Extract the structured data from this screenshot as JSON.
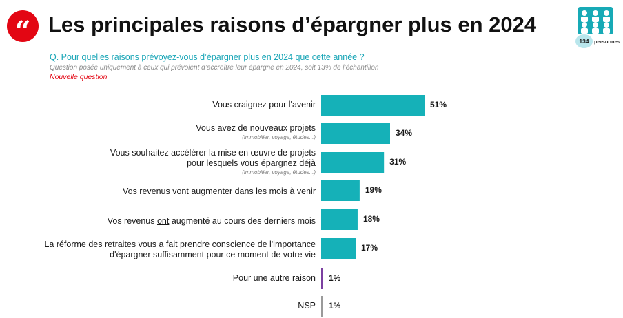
{
  "header": {
    "quote_glyph": "“",
    "title": "Les principales raisons d’épargner plus en 2024",
    "question": "Q. Pour quelles raisons prévoyez-vous d’épargner plus en 2024 que cette année ?",
    "note": "Question posée uniquement à ceux qui prévoient d’accroître leur épargne en 2024, soit 13% de l’échantillon",
    "new_question": "Nouvelle question",
    "sample_count": "134",
    "sample_label": "personnes"
  },
  "colors": {
    "teal": "#15b1b8",
    "purple": "#7b3fa0",
    "gray": "#9a9a9a",
    "red": "#e30613"
  },
  "chart_data": {
    "type": "bar",
    "orientation": "horizontal",
    "categories": [
      "Vous craignez pour l'avenir",
      "Vous avez de nouveaux projets",
      "Vous souhaitez accélérer la mise en œuvre de projets pour lesquels vous épargnez déjà",
      "Vos revenus vont augmenter dans les mois à venir",
      "Vos revenus ont augmenté au cours des derniers mois",
      "La réforme des retraites vous a fait prendre conscience de l'importance d'épargner suffisamment pour ce moment de votre vie",
      "Pour une autre raison",
      "NSP"
    ],
    "values": [
      51,
      34,
      31,
      19,
      18,
      17,
      1,
      1
    ],
    "value_labels": [
      "51%",
      "34%",
      "31%",
      "19%",
      "18%",
      "17%",
      "1%",
      "1%"
    ],
    "bar_colors": [
      "#15b1b8",
      "#15b1b8",
      "#15b1b8",
      "#15b1b8",
      "#15b1b8",
      "#15b1b8",
      "#7b3fa0",
      "#9a9a9a"
    ],
    "xlim": [
      0,
      51
    ],
    "grid": false,
    "legend": "none"
  },
  "labels": {
    "c0": {
      "text": "Vous craignez pour l'avenir"
    },
    "c1": {
      "text": "Vous avez de nouveaux projets",
      "sub": "(immobilier, voyage, études...)"
    },
    "c2": {
      "line1": "Vous souhaitez accélérer la mise en œuvre de projets",
      "line2": "pour lesquels vous épargnez déjà",
      "sub": "(immobilier, voyage, études...)"
    },
    "c3": {
      "pre": "Vos revenus ",
      "u": "vont",
      "post": " augmenter dans les mois à venir"
    },
    "c4": {
      "pre": "Vos revenus ",
      "u": "ont",
      "post": " augmenté au cours des derniers mois"
    },
    "c5": {
      "line1": "La réforme des retraites vous a fait prendre conscience de l'importance",
      "line2": "d'épargner suffisamment pour ce moment de votre vie"
    },
    "c6": {
      "text": "Pour une autre raison"
    },
    "c7": {
      "text": "NSP"
    }
  }
}
